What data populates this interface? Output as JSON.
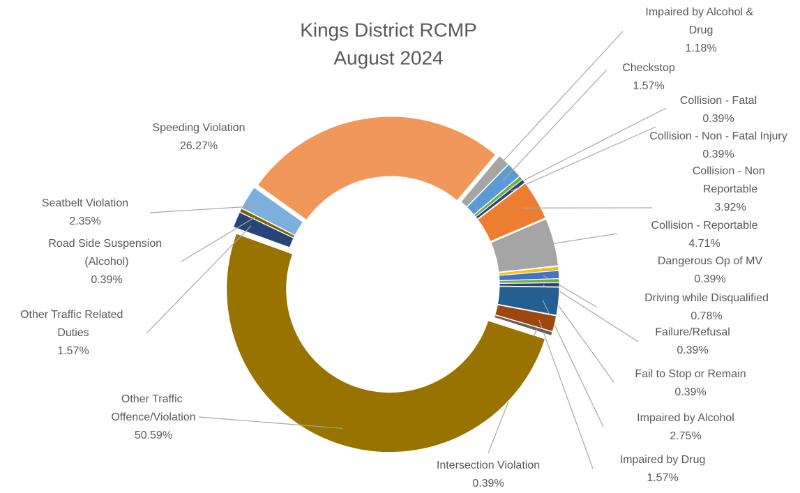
{
  "chart_data": {
    "type": "donut",
    "title": [
      "Kings District RCMP",
      "August 2024"
    ],
    "categories": [
      "Impaired by Alcohol & Drug",
      "Checkstop",
      "Collision - Fatal",
      "Collision - Non - Fatal Injury",
      "Collision - Non Reportable",
      "Collision - Reportable",
      "Dangerous Op of MV",
      "Driving while Disqualified",
      "Failure/Refusal",
      "Fail to Stop or Remain",
      "Impaired by Alcohol",
      "Impaired by Drug",
      "Intersection Violation",
      "Other Traffic Offence/Violation",
      "Other Traffic Related Duties",
      "Road Side Suspension (Alcohol)",
      "Seatbelt Violation",
      "Speeding Violation"
    ],
    "values": [
      1.18,
      1.57,
      0.39,
      0.39,
      3.92,
      4.71,
      0.39,
      0.78,
      0.39,
      0.39,
      2.75,
      1.57,
      0.39,
      50.59,
      1.57,
      0.39,
      2.35,
      26.27
    ],
    "value_labels": [
      "1.18%",
      "1.57%",
      "0.39%",
      "0.39%",
      "3.92%",
      "4.71%",
      "0.39%",
      "0.78%",
      "0.39%",
      "0.39%",
      "2.75%",
      "1.57%",
      "0.39%",
      "50.59%",
      "1.57%",
      "0.39%",
      "2.35%",
      "26.27%"
    ],
    "colors": [
      "#a5a5a5",
      "#5b9bd5",
      "#70ad47",
      "#264478",
      "#ed7d31",
      "#a5a5a5",
      "#ffc000",
      "#4472c4",
      "#70ad47",
      "#264478",
      "#255e91",
      "#9e480e",
      "#636363",
      "#997300",
      "#264478",
      "#7f6000",
      "#7cafdd",
      "#f1975a"
    ]
  }
}
